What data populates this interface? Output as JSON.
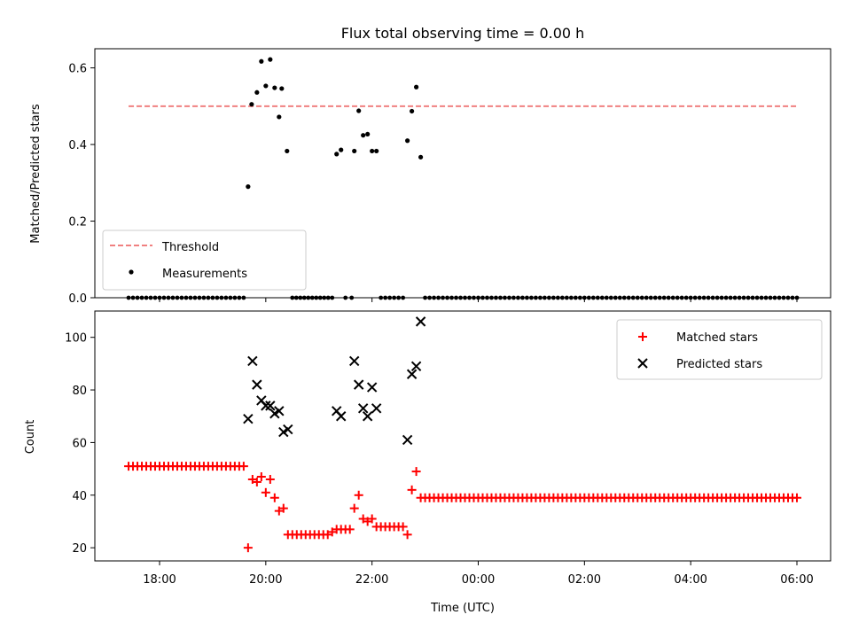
{
  "chart_data": [
    {
      "type": "scatter",
      "title": "Flux total observing time = 0.00 h",
      "ylabel": "Matched/Predicted stars",
      "ylim": [
        0,
        0.65
      ],
      "yticks": [
        "0.0",
        "0.2",
        "0.4",
        "0.6"
      ],
      "grid": false,
      "legend_position": "lower-left",
      "threshold": {
        "name": "Threshold",
        "value": 0.5,
        "color": "#f08080",
        "style": "dashed",
        "x_start": "17:25",
        "x_end": "06:00"
      },
      "series": [
        {
          "name": "Measurements",
          "color": "#000000",
          "marker": "dot",
          "points": [
            [
              "19:40",
              0.29
            ],
            [
              "19:44",
              0.505
            ],
            [
              "19:50",
              0.536
            ],
            [
              "19:55",
              0.617
            ],
            [
              "20:00",
              0.553
            ],
            [
              "20:05",
              0.622
            ],
            [
              "20:10",
              0.548
            ],
            [
              "20:15",
              0.472
            ],
            [
              "20:18",
              0.546
            ],
            [
              "20:24",
              0.383
            ],
            [
              "21:20",
              0.375
            ],
            [
              "21:25",
              0.386
            ],
            [
              "21:40",
              0.383
            ],
            [
              "21:45",
              0.488
            ],
            [
              "21:50",
              0.424
            ],
            [
              "21:55",
              0.427
            ],
            [
              "22:00",
              0.383
            ],
            [
              "22:05",
              0.383
            ],
            [
              "22:40",
              0.41
            ],
            [
              "22:45",
              0.487
            ],
            [
              "22:50",
              0.55
            ],
            [
              "22:55",
              0.367
            ]
          ],
          "zero_point_ranges": [
            {
              "start": "17:25",
              "end": "19:35",
              "count": 27
            },
            {
              "start": "20:30",
              "end": "21:15",
              "count": 11
            },
            {
              "start": "21:30",
              "end": "21:37",
              "count": 2
            },
            {
              "start": "22:10",
              "end": "22:35",
              "count": 6
            },
            {
              "start": "23:00",
              "end": "06:00",
              "count": 85
            }
          ]
        }
      ]
    },
    {
      "type": "scatter",
      "xlabel": "Time (UTC)",
      "ylabel": "Count",
      "ylim": [
        15,
        110
      ],
      "yticks": [
        "20",
        "40",
        "60",
        "80",
        "100"
      ],
      "xlim": [
        "16:45",
        "06:35"
      ],
      "xticks": [
        "18:00",
        "20:00",
        "22:00",
        "00:00",
        "02:00",
        "04:00",
        "06:00"
      ],
      "grid": false,
      "legend_position": "upper-right",
      "series": [
        {
          "name": "Matched stars",
          "color": "#ff0000",
          "marker": "plus",
          "points": [
            [
              "19:40",
              20
            ],
            [
              "19:45",
              46
            ],
            [
              "19:50",
              45
            ],
            [
              "19:55",
              47
            ],
            [
              "20:00",
              41
            ],
            [
              "20:05",
              46
            ],
            [
              "20:10",
              39
            ],
            [
              "20:15",
              34
            ],
            [
              "20:20",
              35
            ],
            [
              "20:25",
              25
            ],
            [
              "20:30",
              25
            ],
            [
              "20:35",
              25
            ],
            [
              "20:40",
              25
            ],
            [
              "20:45",
              25
            ],
            [
              "20:50",
              25
            ],
            [
              "20:55",
              25
            ],
            [
              "21:00",
              25
            ],
            [
              "21:05",
              25
            ],
            [
              "21:10",
              25
            ],
            [
              "21:15",
              26
            ],
            [
              "21:20",
              27
            ],
            [
              "21:25",
              27
            ],
            [
              "21:30",
              27
            ],
            [
              "21:35",
              27
            ],
            [
              "21:40",
              35
            ],
            [
              "21:45",
              40
            ],
            [
              "21:50",
              31
            ],
            [
              "21:55",
              30
            ],
            [
              "22:00",
              31
            ],
            [
              "22:05",
              28
            ],
            [
              "22:10",
              28
            ],
            [
              "22:15",
              28
            ],
            [
              "22:20",
              28
            ],
            [
              "22:25",
              28
            ],
            [
              "22:30",
              28
            ],
            [
              "22:35",
              28
            ],
            [
              "22:40",
              25
            ],
            [
              "22:45",
              42
            ],
            [
              "22:50",
              49
            ],
            [
              "22:55",
              39
            ]
          ],
          "constant_ranges": [
            {
              "start": "17:25",
              "end": "19:35",
              "count": 27,
              "value": 51
            },
            {
              "start": "23:00",
              "end": "06:00",
              "count": 85,
              "value": 39
            }
          ]
        },
        {
          "name": "Predicted stars",
          "color": "#000000",
          "marker": "x",
          "points": [
            [
              "19:40",
              69
            ],
            [
              "19:45",
              91
            ],
            [
              "19:50",
              82
            ],
            [
              "19:55",
              76
            ],
            [
              "20:00",
              74
            ],
            [
              "20:05",
              74
            ],
            [
              "20:10",
              71
            ],
            [
              "20:15",
              72
            ],
            [
              "20:20",
              64
            ],
            [
              "20:25",
              65
            ],
            [
              "21:20",
              72
            ],
            [
              "21:25",
              70
            ],
            [
              "21:40",
              91
            ],
            [
              "21:45",
              82
            ],
            [
              "21:50",
              73
            ],
            [
              "21:55",
              70
            ],
            [
              "22:00",
              81
            ],
            [
              "22:05",
              73
            ],
            [
              "22:40",
              61
            ],
            [
              "22:45",
              86
            ],
            [
              "22:50",
              89
            ],
            [
              "22:55",
              106
            ]
          ]
        }
      ]
    }
  ]
}
